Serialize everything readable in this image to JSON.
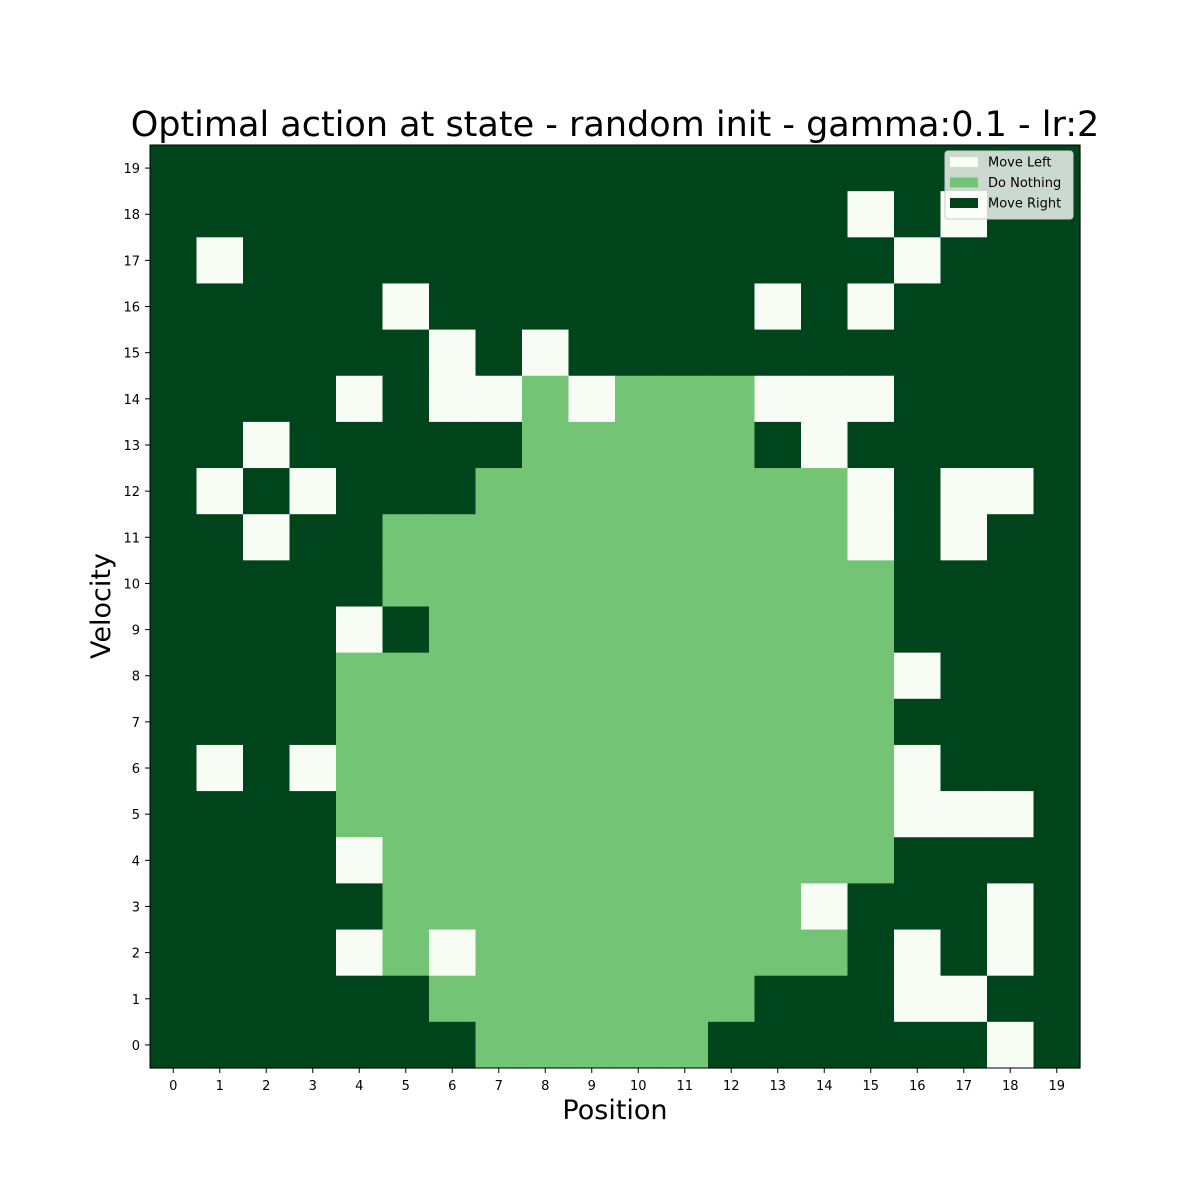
{
  "chart_data": {
    "type": "heatmap",
    "title": "Optimal action at state - random init - gamma:0.1 - lr:2",
    "xlabel": "Position",
    "ylabel": "Velocity",
    "x_ticks": [
      "0",
      "1",
      "2",
      "3",
      "4",
      "5",
      "6",
      "7",
      "8",
      "9",
      "10",
      "11",
      "12",
      "13",
      "14",
      "15",
      "16",
      "17",
      "18",
      "19"
    ],
    "y_ticks": [
      "0",
      "1",
      "2",
      "3",
      "4",
      "5",
      "6",
      "7",
      "8",
      "9",
      "10",
      "11",
      "12",
      "13",
      "14",
      "15",
      "16",
      "17",
      "18",
      "19"
    ],
    "grid": false,
    "legend_position": "top-right",
    "legend": [
      {
        "label": "Move Left",
        "value": 0,
        "color": "#f7fcf5"
      },
      {
        "label": "Do Nothing",
        "value": 1,
        "color": "#74c476"
      },
      {
        "label": "Move Right",
        "value": 2,
        "color": "#00441b"
      }
    ],
    "grid_rows_top_to_bottom_velocity_19_to_0": [
      [
        2,
        2,
        2,
        2,
        2,
        2,
        2,
        2,
        2,
        2,
        2,
        2,
        2,
        2,
        2,
        2,
        2,
        2,
        2,
        2
      ],
      [
        2,
        2,
        2,
        2,
        2,
        2,
        2,
        2,
        2,
        2,
        2,
        2,
        2,
        2,
        2,
        0,
        2,
        0,
        2,
        2
      ],
      [
        2,
        0,
        2,
        2,
        2,
        2,
        2,
        2,
        2,
        2,
        2,
        2,
        2,
        2,
        2,
        2,
        0,
        2,
        2,
        2
      ],
      [
        2,
        2,
        2,
        2,
        2,
        0,
        2,
        2,
        2,
        2,
        2,
        2,
        2,
        0,
        2,
        0,
        2,
        2,
        2,
        2
      ],
      [
        2,
        2,
        2,
        2,
        2,
        2,
        0,
        2,
        0,
        2,
        2,
        2,
        2,
        2,
        2,
        2,
        2,
        2,
        2,
        2
      ],
      [
        2,
        2,
        2,
        2,
        0,
        2,
        0,
        0,
        1,
        0,
        1,
        1,
        1,
        0,
        0,
        0,
        2,
        2,
        2,
        2
      ],
      [
        2,
        2,
        0,
        2,
        2,
        2,
        2,
        2,
        1,
        1,
        1,
        1,
        1,
        2,
        0,
        2,
        2,
        2,
        2,
        2
      ],
      [
        2,
        0,
        2,
        0,
        2,
        2,
        2,
        1,
        1,
        1,
        1,
        1,
        1,
        1,
        1,
        0,
        2,
        0,
        0,
        2
      ],
      [
        2,
        2,
        0,
        2,
        2,
        1,
        1,
        1,
        1,
        1,
        1,
        1,
        1,
        1,
        1,
        0,
        2,
        0,
        2,
        2
      ],
      [
        2,
        2,
        2,
        2,
        2,
        1,
        1,
        1,
        1,
        1,
        1,
        1,
        1,
        1,
        1,
        1,
        2,
        2,
        2,
        2
      ],
      [
        2,
        2,
        2,
        2,
        0,
        2,
        1,
        1,
        1,
        1,
        1,
        1,
        1,
        1,
        1,
        1,
        2,
        2,
        2,
        2
      ],
      [
        2,
        2,
        2,
        2,
        1,
        1,
        1,
        1,
        1,
        1,
        1,
        1,
        1,
        1,
        1,
        1,
        0,
        2,
        2,
        2
      ],
      [
        2,
        2,
        2,
        2,
        1,
        1,
        1,
        1,
        1,
        1,
        1,
        1,
        1,
        1,
        1,
        1,
        2,
        2,
        2,
        2
      ],
      [
        2,
        0,
        2,
        0,
        1,
        1,
        1,
        1,
        1,
        1,
        1,
        1,
        1,
        1,
        1,
        1,
        0,
        2,
        2,
        2
      ],
      [
        2,
        2,
        2,
        2,
        1,
        1,
        1,
        1,
        1,
        1,
        1,
        1,
        1,
        1,
        1,
        1,
        0,
        0,
        0,
        2
      ],
      [
        2,
        2,
        2,
        2,
        0,
        1,
        1,
        1,
        1,
        1,
        1,
        1,
        1,
        1,
        1,
        1,
        2,
        2,
        2,
        2
      ],
      [
        2,
        2,
        2,
        2,
        2,
        1,
        1,
        1,
        1,
        1,
        1,
        1,
        1,
        1,
        0,
        2,
        2,
        2,
        0,
        2
      ],
      [
        2,
        2,
        2,
        2,
        0,
        1,
        0,
        1,
        1,
        1,
        1,
        1,
        1,
        1,
        1,
        2,
        0,
        2,
        0,
        2
      ],
      [
        2,
        2,
        2,
        2,
        2,
        2,
        1,
        1,
        1,
        1,
        1,
        1,
        1,
        2,
        2,
        2,
        0,
        0,
        2,
        2
      ],
      [
        2,
        2,
        2,
        2,
        2,
        2,
        2,
        1,
        1,
        1,
        1,
        1,
        2,
        2,
        2,
        2,
        2,
        2,
        0,
        2
      ]
    ]
  }
}
